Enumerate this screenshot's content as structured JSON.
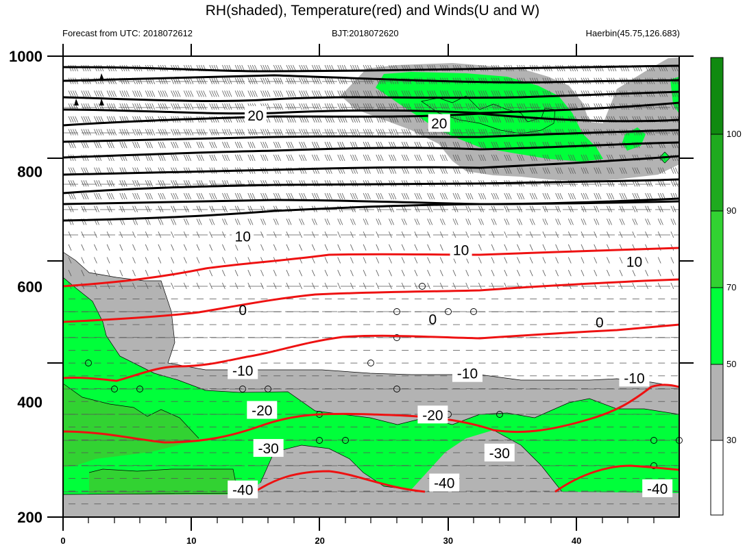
{
  "header": {
    "title": "RH(shaded), Temperature(red) and Winds(U and W)",
    "forecast": "Forecast from UTC: 2018072612",
    "bjt": "BJT:2018072620",
    "station": "Haerbin(45.75,126.683)"
  },
  "chart_data": {
    "type": "contour",
    "title": "RH(shaded), Temperature(red) and Winds(U and W)",
    "xlim": [
      0,
      48
    ],
    "ylim": [
      1000,
      200
    ],
    "x_ticks": [
      0,
      10,
      20,
      30,
      40
    ],
    "y_ticks": [
      200,
      400,
      600,
      800,
      1000
    ],
    "colorbar": {
      "labels": [
        "30",
        "50",
        "70",
        "90",
        "100"
      ],
      "colors": [
        "#ffffff",
        "#b3b3b3",
        "#00ff3a",
        "#32d232",
        "#1faa1f",
        "#108a10"
      ]
    },
    "temperature_labels": [
      {
        "x": 14,
        "p": 248,
        "text": "-40"
      },
      {
        "x": 29.7,
        "p": 260,
        "text": "-40"
      },
      {
        "x": 46.3,
        "p": 250,
        "text": "-40"
      },
      {
        "x": 16,
        "p": 320,
        "text": "-30"
      },
      {
        "x": 34,
        "p": 312,
        "text": "-30"
      },
      {
        "x": 15.5,
        "p": 386,
        "text": "-20"
      },
      {
        "x": 28.8,
        "p": 378,
        "text": "-20"
      },
      {
        "x": 14,
        "p": 455,
        "text": "-10"
      },
      {
        "x": 31.5,
        "p": 450,
        "text": "-10"
      },
      {
        "x": 44.5,
        "p": 442,
        "text": "-10"
      },
      {
        "x": 14,
        "p": 560,
        "text": "0"
      },
      {
        "x": 28.8,
        "p": 544,
        "text": "0"
      },
      {
        "x": 41.8,
        "p": 539,
        "text": "0"
      },
      {
        "x": 14,
        "p": 688,
        "text": "10"
      },
      {
        "x": 31,
        "p": 664,
        "text": "10"
      },
      {
        "x": 44.5,
        "p": 644,
        "text": "10"
      },
      {
        "x": 15,
        "p": 898,
        "text": "20"
      },
      {
        "x": 29.3,
        "p": 884,
        "text": "20"
      }
    ]
  }
}
